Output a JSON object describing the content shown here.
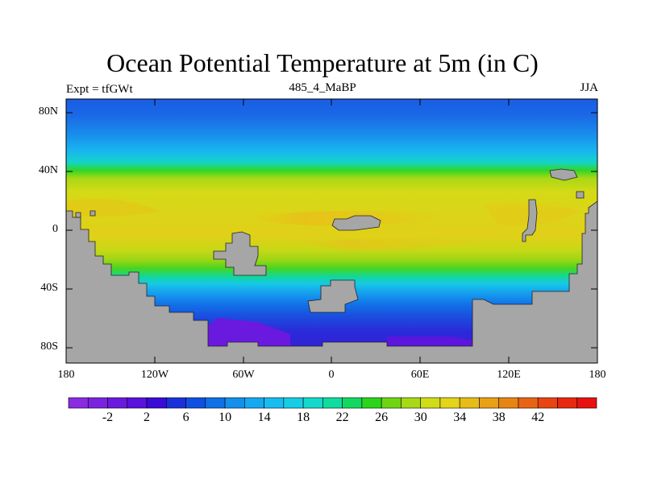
{
  "figure": {
    "title": "Ocean Potential Temperature at 5m (in C)",
    "left_label": "Expt = tfGWt",
    "center_label": "485_4_MaBP",
    "right_label": "JJA"
  },
  "axes": {
    "y_ticks": [
      "80N",
      "40N",
      "0",
      "40S",
      "80S"
    ],
    "x_ticks": [
      "180",
      "120W",
      "60W",
      "0",
      "60E",
      "120E",
      "180"
    ]
  },
  "colorbar": {
    "labels": [
      "-2",
      "2",
      "6",
      "10",
      "14",
      "18",
      "22",
      "26",
      "30",
      "34",
      "38",
      "42"
    ],
    "colors": [
      "#8a2be2",
      "#7a22e0",
      "#6a1ade",
      "#5a12dc",
      "#3a0ad8",
      "#1a30d8",
      "#1050e0",
      "#1070e6",
      "#1490ec",
      "#16a8f0",
      "#18bcf0",
      "#18cce6",
      "#14d8cc",
      "#10dca0",
      "#12d860",
      "#2cd41c",
      "#6ed414",
      "#a8d816",
      "#d0dc18",
      "#e4d41a",
      "#e8bc18",
      "#e8a014",
      "#e88414",
      "#e86414",
      "#e84414",
      "#e82810",
      "#e81010"
    ]
  },
  "map": {
    "colors": {
      "land": "#a6a6a6",
      "ocean_polar": "#1a5ce4",
      "ocean_deep_cold": "#5a1ae0"
    }
  }
}
